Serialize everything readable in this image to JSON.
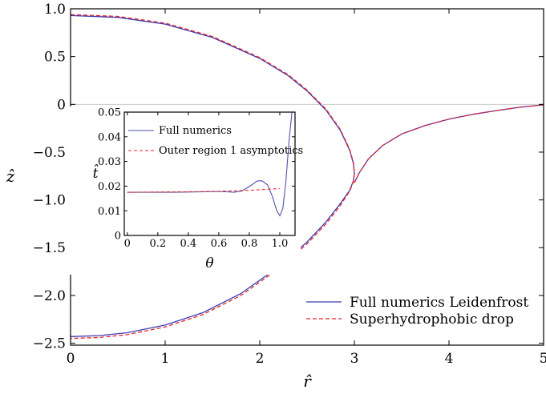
{
  "chart_data": [
    {
      "type": "line",
      "xlabel": "r̂",
      "ylabel": "ẑ",
      "xlim": [
        0,
        5
      ],
      "ylim": [
        -2.52,
        1.0
      ],
      "xticks": [
        0,
        1,
        2,
        3,
        4,
        5
      ],
      "yticks": [
        1.0,
        0.5,
        0,
        -0.5,
        -1.0,
        -1.5,
        -2.0,
        -2.5
      ],
      "xtick_labels": [
        "0",
        "1",
        "2",
        "3",
        "4",
        "5"
      ],
      "ytick_labels": [
        "1.0",
        "0.5",
        "0",
        "−0.5",
        "−1.0",
        "−1.5",
        "−2.0",
        "−2.5"
      ],
      "reference_line": {
        "y": 0,
        "color": "#cccccc"
      },
      "legend_position": "bottom-right",
      "series": [
        {
          "name": "Full numerics Leidenfrost",
          "color": "#3b3bb0",
          "style": "solid",
          "segments": [
            {
              "x": [
                0,
                0.5,
                1.0,
                1.5,
                2.0,
                2.3,
                2.5,
                2.7,
                2.85,
                2.95,
                2.99,
                3.0,
                2.99,
                2.95,
                2.85,
                2.7,
                2.5,
                2.2,
                1.8,
                1.4,
                1.0,
                0.6,
                0.3,
                0
              ],
              "y": [
                0.93,
                0.91,
                0.84,
                0.7,
                0.48,
                0.3,
                0.14,
                -0.06,
                -0.27,
                -0.48,
                -0.62,
                -0.72,
                -0.8,
                -0.9,
                -1.04,
                -1.23,
                -1.44,
                -1.7,
                -1.98,
                -2.18,
                -2.31,
                -2.39,
                -2.42,
                -2.43
              ]
            },
            {
              "x": [
                3.0,
                3.05,
                3.15,
                3.3,
                3.5,
                3.75,
                4.0,
                4.25,
                4.5,
                4.75,
                5.0
              ],
              "y": [
                -0.82,
                -0.72,
                -0.57,
                -0.43,
                -0.31,
                -0.22,
                -0.155,
                -0.105,
                -0.065,
                -0.03,
                -0.005
              ]
            }
          ]
        },
        {
          "name": "Superhydrophobic drop",
          "color": "#e8262f",
          "style": "dashed",
          "segments": [
            {
              "x": [
                0,
                0.5,
                1.0,
                1.5,
                2.0,
                2.3,
                2.5,
                2.7,
                2.85,
                2.95,
                2.99,
                3.0,
                2.99,
                2.95,
                2.85,
                2.7,
                2.5,
                2.2,
                1.8,
                1.4,
                1.0,
                0.6,
                0.3,
                0
              ],
              "y": [
                0.94,
                0.92,
                0.85,
                0.71,
                0.49,
                0.31,
                0.15,
                -0.05,
                -0.26,
                -0.47,
                -0.61,
                -0.72,
                -0.81,
                -0.91,
                -1.06,
                -1.25,
                -1.46,
                -1.72,
                -2.0,
                -2.2,
                -2.33,
                -2.41,
                -2.44,
                -2.45
              ]
            },
            {
              "x": [
                3.0,
                3.05,
                3.15,
                3.3,
                3.5,
                3.75,
                4.0,
                4.25,
                4.5,
                4.75,
                5.0
              ],
              "y": [
                -0.82,
                -0.72,
                -0.57,
                -0.43,
                -0.31,
                -0.22,
                -0.155,
                -0.105,
                -0.065,
                -0.03,
                -0.005
              ]
            }
          ]
        }
      ]
    },
    {
      "type": "line",
      "xlabel": "θ",
      "ylabel": "t̂",
      "xlim": [
        -0.02,
        1.1
      ],
      "ylim": [
        0,
        0.05
      ],
      "xticks": [
        0,
        0.2,
        0.4,
        0.6,
        0.8,
        1.0
      ],
      "yticks": [
        0,
        0.01,
        0.02,
        0.03,
        0.04,
        0.05
      ],
      "xtick_labels": [
        "0",
        "0.2",
        "0.4",
        "0.6",
        "0.8",
        "1.0"
      ],
      "ytick_labels": [
        "0",
        "0.01",
        "0.02",
        "0.03",
        "0.04",
        "0.05"
      ],
      "legend_position": "top-left",
      "series": [
        {
          "name": "Full numerics",
          "color": "#5252a8",
          "style": "solid",
          "x": [
            0,
            0.1,
            0.2,
            0.3,
            0.4,
            0.5,
            0.55,
            0.6,
            0.65,
            0.7,
            0.75,
            0.8,
            0.85,
            0.88,
            0.92,
            0.95,
            0.98,
            1.0,
            1.02,
            1.04,
            1.06,
            1.08
          ],
          "y": [
            0.0175,
            0.0175,
            0.0175,
            0.0175,
            0.0176,
            0.0177,
            0.0178,
            0.0178,
            0.0177,
            0.0175,
            0.018,
            0.0198,
            0.022,
            0.0222,
            0.0205,
            0.016,
            0.01,
            0.008,
            0.011,
            0.022,
            0.038,
            0.05
          ]
        },
        {
          "name": "Outer region 1 asymptotics",
          "color": "#e8262f",
          "style": "dashed",
          "x": [
            0,
            0.2,
            0.4,
            0.6,
            0.8,
            1.0
          ],
          "y": [
            0.0175,
            0.0176,
            0.0177,
            0.0179,
            0.0183,
            0.019
          ]
        }
      ]
    }
  ]
}
